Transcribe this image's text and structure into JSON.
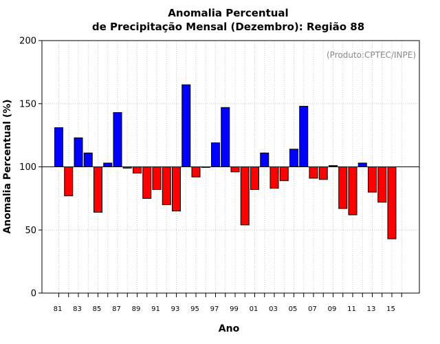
{
  "chart_data": {
    "type": "bar",
    "title_line1": "Anomalia Percentual",
    "title_line2": "de Precipitação Mensal (Dezembro): Região 88",
    "xlabel": "Ano",
    "ylabel": "Anomalia Percentual (%)",
    "annotation": "(Produto:CPTEC/INPE)",
    "ylim": [
      0,
      200
    ],
    "yticks": [
      "0",
      "50",
      "100",
      "150",
      "200"
    ],
    "baseline": 100,
    "grid": true,
    "x_labels": [
      "81",
      "83",
      "85",
      "87",
      "89",
      "91",
      "93",
      "95",
      "97",
      "99",
      "01",
      "03",
      "05",
      "07",
      "09",
      "11",
      "13",
      "15"
    ],
    "categories": [
      "1981",
      "1982",
      "1983",
      "1984",
      "1985",
      "1986",
      "1987",
      "1988",
      "1989",
      "1990",
      "1991",
      "1992",
      "1993",
      "1994",
      "1995",
      "1996",
      "1997",
      "1998",
      "1999",
      "2000",
      "2001",
      "2002",
      "2003",
      "2004",
      "2005",
      "2006",
      "2007",
      "2008",
      "2009",
      "2010",
      "2011",
      "2012",
      "2013",
      "2014",
      "2015"
    ],
    "values": [
      131,
      77,
      123,
      111,
      64,
      103,
      143,
      99,
      95,
      75,
      82,
      70,
      65,
      165,
      92,
      100,
      119,
      147,
      96,
      54,
      82,
      111,
      83,
      89,
      114,
      148,
      91,
      90,
      101,
      67,
      62,
      103,
      80,
      72,
      43
    ],
    "colors": {
      "above": "#0000ff",
      "below": "#ff0000"
    }
  }
}
